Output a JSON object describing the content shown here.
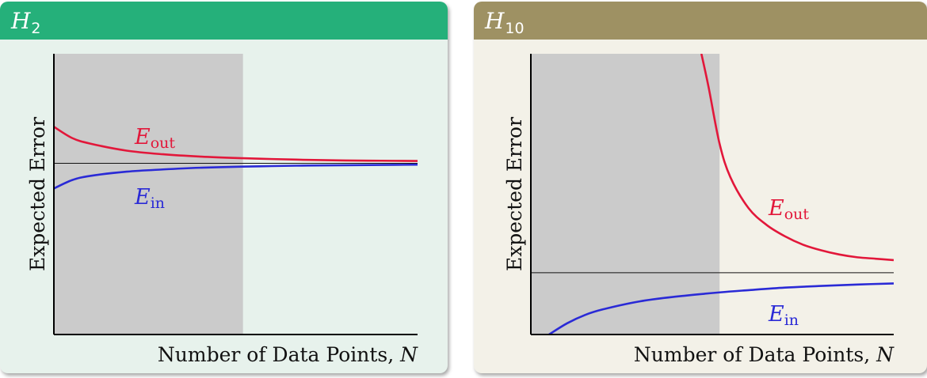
{
  "colors": {
    "eout": "#e2173a",
    "ein": "#2a2ad6",
    "shade": "#cbcbcb",
    "left_header": "#25b07a",
    "right_header": "#9e9163"
  },
  "panels": [
    {
      "title_main": "H",
      "title_sub": "2",
      "ylabel": "Expected Error",
      "xlabel": "Number of Data Points, ",
      "xlabel_var": "N",
      "eout_label": "E",
      "eout_sub": "out",
      "ein_label": "E",
      "ein_sub": "in"
    },
    {
      "title_main": "H",
      "title_sub": "10",
      "ylabel": "Expected Error",
      "xlabel": "Number of Data Points, ",
      "xlabel_var": "N",
      "eout_label": "E",
      "eout_sub": "out",
      "ein_label": "E",
      "ein_sub": "in"
    }
  ],
  "chart_data": [
    {
      "type": "line",
      "title": "H2",
      "xlabel": "Number of Data Points, N",
      "ylabel": "Expected Error",
      "xlim": [
        0,
        1
      ],
      "ylim": [
        0,
        1
      ],
      "shaded_region_x": [
        0,
        0.52
      ],
      "asymptote_y": 0.61,
      "series": [
        {
          "name": "E_out",
          "x": [
            0,
            0.05,
            0.1,
            0.2,
            0.3,
            0.4,
            0.52,
            0.6,
            0.7,
            0.8,
            0.9,
            1.0
          ],
          "y": [
            0.74,
            0.7,
            0.68,
            0.655,
            0.642,
            0.634,
            0.628,
            0.625,
            0.622,
            0.62,
            0.619,
            0.618
          ]
        },
        {
          "name": "E_in",
          "x": [
            0,
            0.05,
            0.1,
            0.2,
            0.3,
            0.4,
            0.52,
            0.6,
            0.7,
            0.8,
            0.9,
            1.0
          ],
          "y": [
            0.52,
            0.55,
            0.565,
            0.58,
            0.588,
            0.594,
            0.598,
            0.6,
            0.602,
            0.603,
            0.604,
            0.605
          ]
        }
      ]
    },
    {
      "type": "line",
      "title": "H10",
      "xlabel": "Number of Data Points, N",
      "ylabel": "Expected Error",
      "xlim": [
        0,
        1
      ],
      "ylim": [
        0,
        1
      ],
      "shaded_region_x": [
        0,
        0.52
      ],
      "asymptote_y": 0.22,
      "series": [
        {
          "name": "E_out",
          "x": [
            0.47,
            0.49,
            0.52,
            0.55,
            0.6,
            0.65,
            0.7,
            0.75,
            0.8,
            0.85,
            0.9,
            0.95,
            1.0
          ],
          "y": [
            1.0,
            0.88,
            0.68,
            0.56,
            0.45,
            0.39,
            0.35,
            0.32,
            0.3,
            0.285,
            0.275,
            0.27,
            0.265
          ]
        },
        {
          "name": "E_in",
          "x": [
            0.05,
            0.1,
            0.15,
            0.2,
            0.3,
            0.4,
            0.52,
            0.6,
            0.7,
            0.8,
            0.9,
            1.0
          ],
          "y": [
            0.0,
            0.04,
            0.07,
            0.09,
            0.118,
            0.135,
            0.15,
            0.158,
            0.167,
            0.173,
            0.178,
            0.182
          ]
        }
      ]
    }
  ]
}
